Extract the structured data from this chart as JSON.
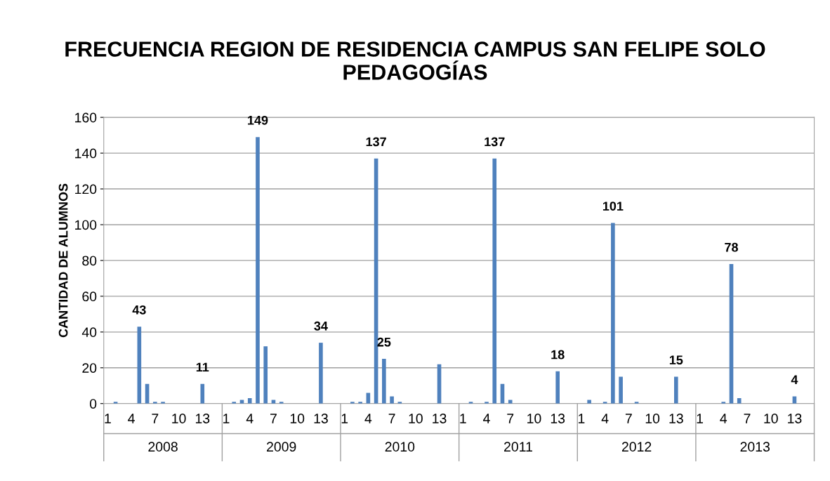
{
  "chart_data": {
    "type": "bar",
    "title": "FRECUENCIA REGION DE RESIDENCIA CAMPUS SAN FELIPE SOLO PEDAGOGÍAS",
    "ylabel": "CANTIDAD DE ALUMNOS",
    "categories": [
      "1",
      null,
      null,
      "4",
      null,
      null,
      "7",
      null,
      null,
      "10",
      null,
      null,
      "13",
      null,
      null,
      "1",
      null,
      null,
      "4",
      null,
      null,
      "7",
      null,
      null,
      "10",
      null,
      null,
      "13",
      null,
      null,
      "1",
      null,
      null,
      "4",
      null,
      null,
      "7",
      null,
      null,
      "10",
      null,
      null,
      "13",
      null,
      null,
      "1",
      null,
      null,
      "4",
      null,
      null,
      "7",
      null,
      null,
      "10",
      null,
      null,
      "13",
      null,
      null,
      "1",
      null,
      null,
      "4",
      null,
      null,
      "7",
      null,
      null,
      "10",
      null,
      null,
      "13",
      null,
      null,
      "1",
      null,
      null,
      "4",
      null,
      null,
      "7",
      null,
      null,
      "10",
      null,
      null,
      "13",
      null,
      null
    ],
    "values": [
      0,
      1,
      0,
      0,
      43,
      11,
      1,
      1,
      0,
      0,
      0,
      0,
      11,
      0,
      0,
      0,
      1,
      2,
      3,
      149,
      32,
      2,
      1,
      0,
      0,
      0,
      0,
      34,
      0,
      0,
      0,
      1,
      1,
      6,
      137,
      25,
      4,
      1,
      0,
      0,
      0,
      0,
      22,
      0,
      0,
      0,
      1,
      0,
      1,
      137,
      11,
      2,
      0,
      0,
      0,
      0,
      0,
      18,
      0,
      0,
      0,
      2,
      0,
      1,
      101,
      15,
      0,
      1,
      0,
      0,
      0,
      0,
      15,
      0,
      0,
      0,
      0,
      0,
      1,
      78,
      3,
      0,
      0,
      0,
      0,
      0,
      0,
      4,
      0,
      0
    ],
    "value_labels": [
      null,
      null,
      null,
      null,
      "43",
      null,
      null,
      null,
      null,
      null,
      null,
      null,
      "11",
      null,
      null,
      null,
      null,
      null,
      null,
      "149",
      null,
      null,
      null,
      null,
      null,
      null,
      null,
      "34",
      null,
      null,
      null,
      null,
      null,
      null,
      "137",
      "25",
      null,
      null,
      null,
      null,
      null,
      null,
      null,
      null,
      null,
      null,
      null,
      null,
      null,
      "137",
      null,
      null,
      null,
      null,
      null,
      null,
      null,
      "18",
      null,
      null,
      null,
      null,
      null,
      null,
      "101",
      null,
      null,
      null,
      null,
      null,
      null,
      null,
      "15",
      null,
      null,
      null,
      null,
      null,
      null,
      "78",
      null,
      null,
      null,
      null,
      null,
      null,
      null,
      "4",
      null,
      null
    ],
    "color": "#4f81bd",
    "annotations": [
      "2008",
      "2009",
      "2010",
      "2011",
      "2012",
      "2013"
    ],
    "ylim": [
      0,
      160
    ],
    "yticks": [
      0,
      20,
      40,
      60,
      80,
      100,
      120,
      140,
      160
    ],
    "grid": "y",
    "legend": false
  }
}
